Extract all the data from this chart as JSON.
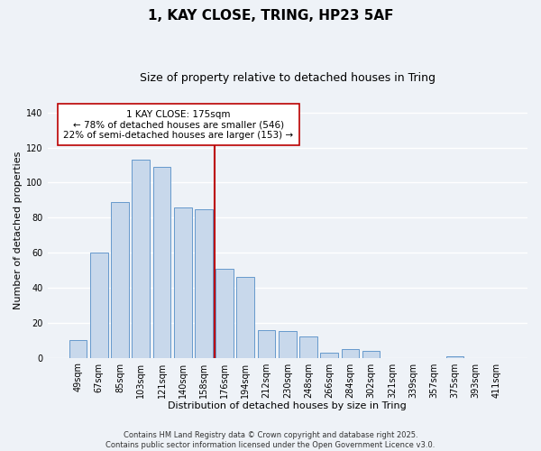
{
  "title": "1, KAY CLOSE, TRING, HP23 5AF",
  "subtitle": "Size of property relative to detached houses in Tring",
  "xlabel": "Distribution of detached houses by size in Tring",
  "ylabel": "Number of detached properties",
  "bar_color": "#c8d8eb",
  "bar_edge_color": "#6699cc",
  "categories": [
    "49sqm",
    "67sqm",
    "85sqm",
    "103sqm",
    "121sqm",
    "140sqm",
    "158sqm",
    "176sqm",
    "194sqm",
    "212sqm",
    "230sqm",
    "248sqm",
    "266sqm",
    "284sqm",
    "302sqm",
    "321sqm",
    "339sqm",
    "357sqm",
    "375sqm",
    "393sqm",
    "411sqm"
  ],
  "values": [
    10,
    60,
    89,
    113,
    109,
    86,
    85,
    51,
    46,
    16,
    15,
    12,
    3,
    5,
    4,
    0,
    0,
    0,
    1,
    0,
    0
  ],
  "ylim": [
    0,
    145
  ],
  "vline_index": 7,
  "vline_color": "#bb0000",
  "annotation_title": "1 KAY CLOSE: 175sqm",
  "annotation_line1": "← 78% of detached houses are smaller (546)",
  "annotation_line2": "22% of semi-detached houses are larger (153) →",
  "annotation_box_color": "#ffffff",
  "annotation_box_edge_color": "#bb0000",
  "footer_line1": "Contains HM Land Registry data © Crown copyright and database right 2025.",
  "footer_line2": "Contains public sector information licensed under the Open Government Licence v3.0.",
  "background_color": "#eef2f7",
  "grid_color": "#ffffff",
  "title_fontsize": 11,
  "subtitle_fontsize": 9,
  "axis_label_fontsize": 8,
  "tick_fontsize": 7,
  "annotation_fontsize": 7.5,
  "footer_fontsize": 6
}
